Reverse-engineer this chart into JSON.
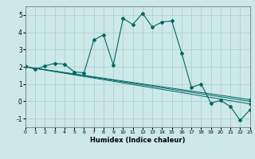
{
  "xlabel": "Humidex (Indice chaleur)",
  "ylabel": "",
  "xlim": [
    0,
    23
  ],
  "ylim": [
    -1.5,
    5.5
  ],
  "xticks": [
    0,
    1,
    2,
    3,
    4,
    5,
    6,
    7,
    8,
    9,
    10,
    11,
    12,
    13,
    14,
    15,
    16,
    17,
    18,
    19,
    20,
    21,
    22,
    23
  ],
  "yticks": [
    -1,
    0,
    1,
    2,
    3,
    4,
    5
  ],
  "bg_color": "#cce8e8",
  "line_color": "#006666",
  "grid_color": "#aacccc",
  "main_line": {
    "x": [
      0,
      1,
      2,
      3,
      4,
      5,
      6,
      7,
      8,
      9,
      10,
      11,
      12,
      13,
      14,
      15,
      16,
      17,
      18,
      19,
      20,
      21,
      22,
      23
    ],
    "y": [
      2.05,
      1.85,
      2.05,
      2.2,
      2.15,
      1.7,
      1.65,
      3.55,
      3.85,
      2.1,
      4.8,
      4.45,
      5.1,
      4.3,
      4.6,
      4.65,
      2.8,
      0.8,
      1.0,
      -0.1,
      0.05,
      -0.3,
      -1.1,
      -0.5
    ]
  },
  "linear_lines": [
    {
      "x": [
        0,
        23
      ],
      "y": [
        2.0,
        -0.15
      ]
    },
    {
      "x": [
        0,
        23
      ],
      "y": [
        2.0,
        -0.0
      ]
    },
    {
      "x": [
        0,
        23
      ],
      "y": [
        2.0,
        0.1
      ]
    }
  ]
}
